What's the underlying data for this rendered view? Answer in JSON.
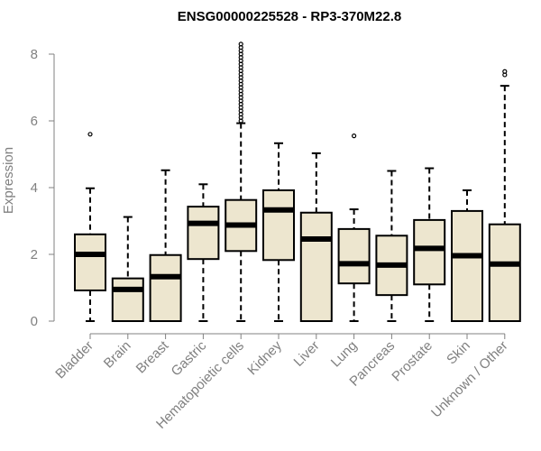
{
  "chart_data": {
    "type": "boxplot",
    "title": "ENSG00000225528 - RP3-370M22.8",
    "xlabel": "",
    "ylabel": "Expression",
    "ylim": [
      0,
      8.3
    ],
    "yticks": [
      0,
      2,
      4,
      6,
      8
    ],
    "categories": [
      "Bladder",
      "Brain",
      "Breast",
      "Gastric",
      "Hematopoietic cells",
      "Kidney",
      "Liver",
      "Lung",
      "Pancreas",
      "Prostate",
      "Skin",
      "Unknown / Other"
    ],
    "boxes": [
      {
        "name": "Bladder",
        "whisker_low": 0,
        "q1": 0.92,
        "median": 2.0,
        "q3": 2.6,
        "whisker_high": 3.98,
        "outliers": [
          5.6
        ]
      },
      {
        "name": "Brain",
        "whisker_low": 0,
        "q1": 0,
        "median": 0.95,
        "q3": 1.28,
        "whisker_high": 3.12,
        "outliers": []
      },
      {
        "name": "Breast",
        "whisker_low": 0,
        "q1": 0,
        "median": 1.33,
        "q3": 1.98,
        "whisker_high": 4.52,
        "outliers": []
      },
      {
        "name": "Gastric",
        "whisker_low": 0,
        "q1": 1.86,
        "median": 2.93,
        "q3": 3.43,
        "whisker_high": 4.1,
        "outliers": []
      },
      {
        "name": "Hematopoietic cells",
        "whisker_low": 0,
        "q1": 2.1,
        "median": 2.88,
        "q3": 3.63,
        "whisker_high": 5.93,
        "outliers": [
          6.0,
          6.1,
          6.2,
          6.3,
          6.4,
          6.5,
          6.6,
          6.7,
          6.8,
          6.9,
          7.0,
          7.1,
          7.2,
          7.3,
          7.4,
          7.5,
          7.6,
          7.7,
          7.8,
          7.9,
          8.0,
          8.1,
          8.2,
          8.3
        ]
      },
      {
        "name": "Kidney",
        "whisker_low": 0,
        "q1": 1.83,
        "median": 3.33,
        "q3": 3.92,
        "whisker_high": 5.33,
        "outliers": []
      },
      {
        "name": "Liver",
        "whisker_low": 0,
        "q1": 0,
        "median": 2.46,
        "q3": 3.25,
        "whisker_high": 5.03,
        "outliers": []
      },
      {
        "name": "Lung",
        "whisker_low": 0,
        "q1": 1.13,
        "median": 1.72,
        "q3": 2.76,
        "whisker_high": 3.35,
        "outliers": [
          5.55
        ]
      },
      {
        "name": "Pancreas",
        "whisker_low": 0,
        "q1": 0.78,
        "median": 1.68,
        "q3": 2.56,
        "whisker_high": 4.5,
        "outliers": []
      },
      {
        "name": "Prostate",
        "whisker_low": 0,
        "q1": 1.1,
        "median": 2.18,
        "q3": 3.03,
        "whisker_high": 4.58,
        "outliers": []
      },
      {
        "name": "Skin",
        "whisker_low": 0,
        "q1": 0,
        "median": 1.96,
        "q3": 3.3,
        "whisker_high": 3.92,
        "outliers": []
      },
      {
        "name": "Unknown / Other",
        "whisker_low": 0,
        "q1": 0,
        "median": 1.71,
        "q3": 2.9,
        "whisker_high": 7.05,
        "outliers": [
          7.38,
          7.48
        ]
      }
    ]
  },
  "colors": {
    "box_fill": "#ede6cf",
    "box_stroke": "#000000",
    "axis": "#808080"
  }
}
